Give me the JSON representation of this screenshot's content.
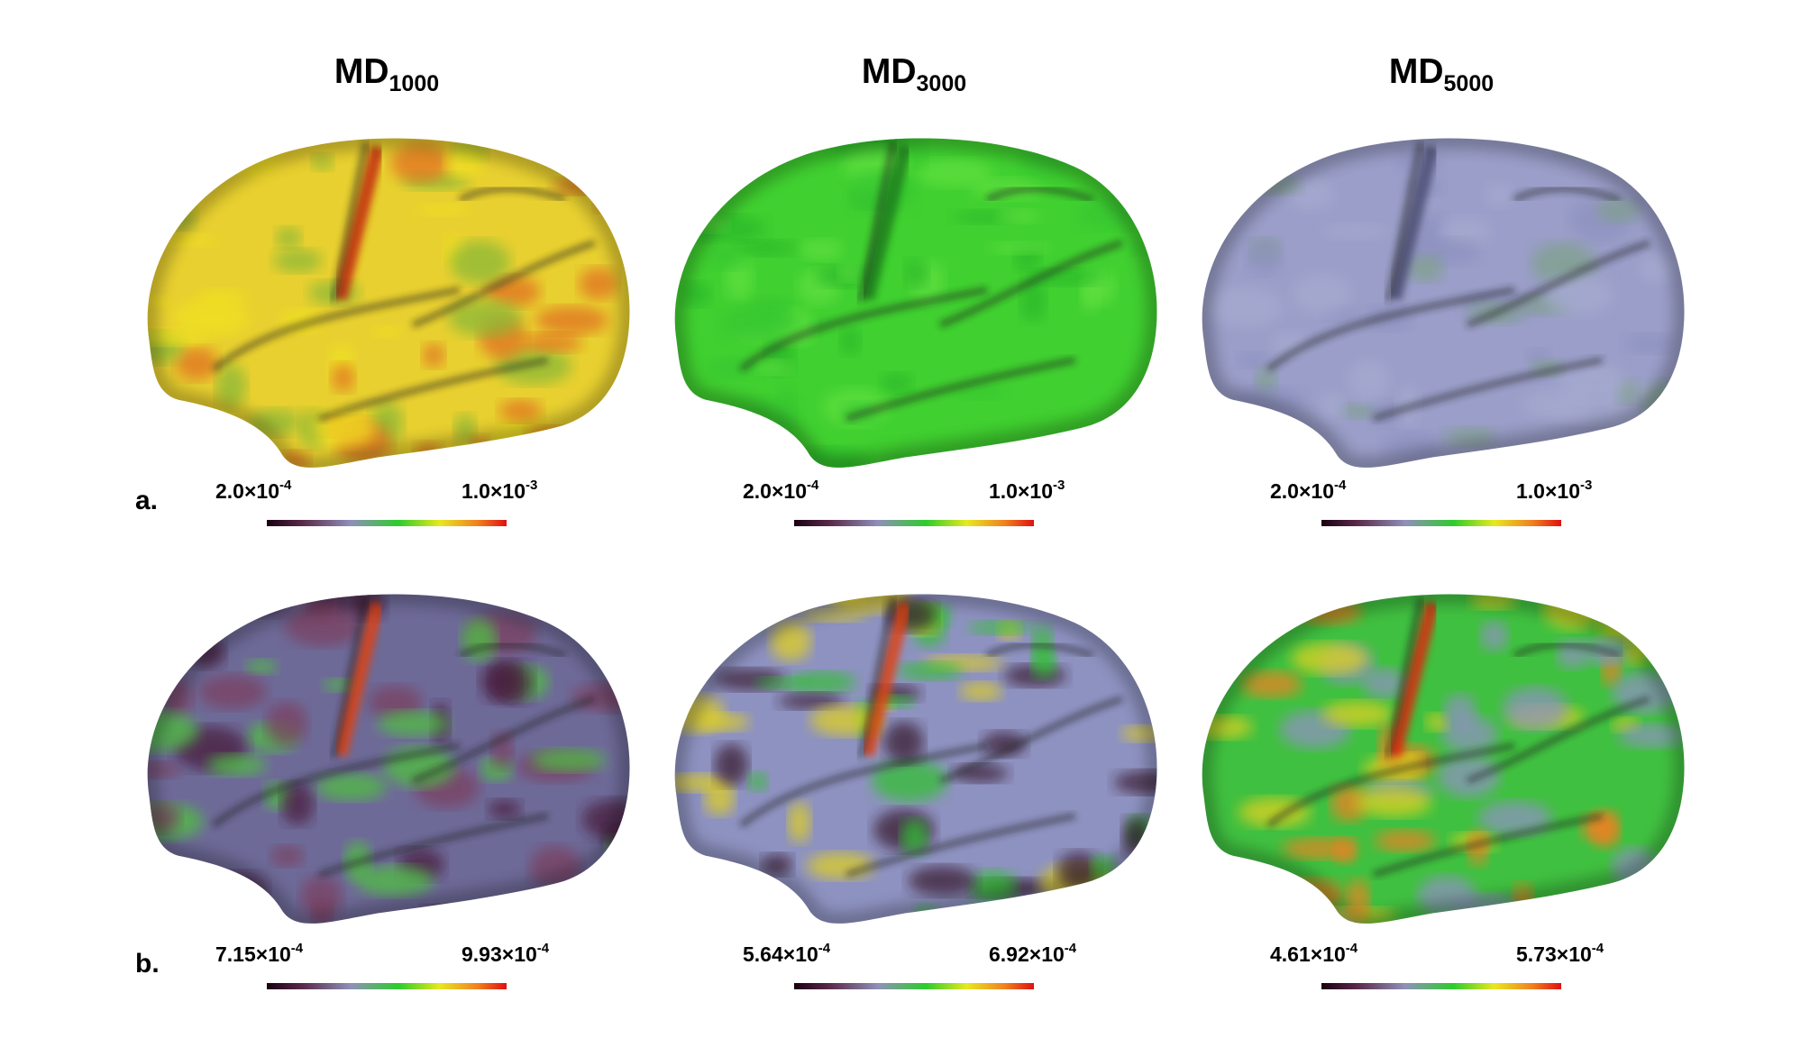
{
  "panels": [
    {
      "title": {
        "base": "MD",
        "sub": "1000"
      }
    },
    {
      "title": {
        "base": "MD",
        "sub": "3000"
      }
    },
    {
      "title": {
        "base": "MD",
        "sub": "5000"
      }
    }
  ],
  "rows": [
    {
      "label": "a.",
      "colorbars": [
        {
          "min": {
            "mantissa": "2.0×10",
            "exp": "-4"
          },
          "max": {
            "mantissa": "1.0×10",
            "exp": "-3"
          }
        },
        {
          "min": {
            "mantissa": "2.0×10",
            "exp": "-4"
          },
          "max": {
            "mantissa": "1.0×10",
            "exp": "-3"
          }
        },
        {
          "min": {
            "mantissa": "2.0×10",
            "exp": "-4"
          },
          "max": {
            "mantissa": "1.0×10",
            "exp": "-3"
          }
        }
      ]
    },
    {
      "label": "b.",
      "colorbars": [
        {
          "min": {
            "mantissa": "7.15×10",
            "exp": "-4"
          },
          "max": {
            "mantissa": "9.93×10",
            "exp": "-4"
          }
        },
        {
          "min": {
            "mantissa": "5.64×10",
            "exp": "-4"
          },
          "max": {
            "mantissa": "6.92×10",
            "exp": "-4"
          }
        },
        {
          "min": {
            "mantissa": "4.61×10",
            "exp": "-4"
          },
          "max": {
            "mantissa": "5.73×10",
            "exp": "-4"
          }
        }
      ]
    }
  ]
}
